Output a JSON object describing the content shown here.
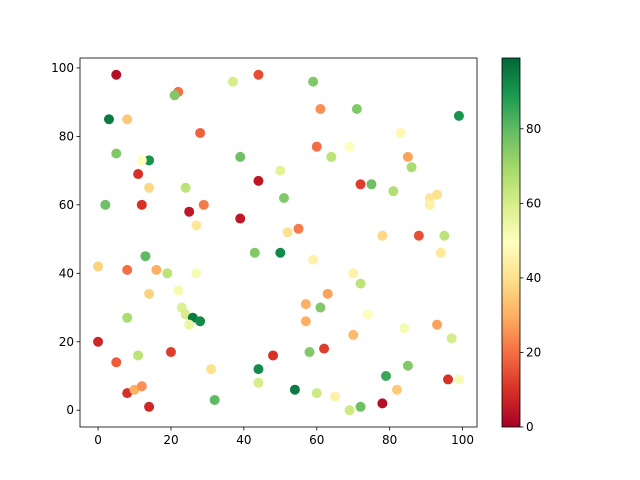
{
  "chart_data": {
    "type": "scatter",
    "colormap": "RdYlGn",
    "colormap_colors": [
      "#a50026",
      "#d73027",
      "#f46d43",
      "#fdae61",
      "#fee08b",
      "#ffffbf",
      "#d9ef8b",
      "#a6d96a",
      "#66bd63",
      "#1a9850",
      "#006837"
    ],
    "xlim": [
      -4.95,
      103.95
    ],
    "ylim": [
      -4.9,
      102.9
    ],
    "clim": [
      0,
      99
    ],
    "xticks": [
      0,
      20,
      40,
      60,
      80,
      100
    ],
    "yticks": [
      0,
      20,
      40,
      60,
      80,
      100
    ],
    "cticks": [
      0,
      20,
      40,
      60,
      80
    ],
    "series": [
      {
        "x": [
          5,
          22,
          21,
          37,
          44,
          59,
          3,
          8,
          99,
          61,
          71,
          5,
          14,
          12,
          28,
          39,
          60,
          64,
          69,
          83,
          85,
          86,
          11,
          14,
          24,
          44,
          50,
          51,
          72,
          75,
          81,
          91,
          93,
          91,
          2,
          12,
          25,
          29,
          39,
          27,
          52,
          55,
          78,
          88,
          95,
          13,
          43,
          50,
          59,
          94,
          0,
          8,
          16,
          19,
          27,
          70,
          72,
          22,
          14,
          63,
          57,
          61,
          23,
          24,
          26,
          28,
          25,
          57,
          74,
          84,
          93,
          8,
          70,
          97,
          0,
          20,
          48,
          58,
          62,
          5,
          11,
          44,
          85,
          31,
          79,
          96,
          99,
          44,
          8,
          10,
          12,
          54,
          60,
          65,
          82,
          14,
          32,
          69,
          72,
          78
        ],
        "y": [
          98,
          93,
          92,
          96,
          98,
          96,
          85,
          85,
          86,
          88,
          88,
          75,
          73,
          73,
          81,
          74,
          77,
          74,
          77,
          81,
          74,
          71,
          69,
          65,
          65,
          67,
          70,
          62,
          66,
          66,
          64,
          62,
          63,
          60,
          60,
          60,
          58,
          60,
          56,
          54,
          52,
          53,
          51,
          51,
          51,
          45,
          46,
          46,
          44,
          46,
          42,
          41,
          41,
          40,
          40,
          40,
          37,
          35,
          34,
          34,
          31,
          30,
          30,
          28,
          27,
          26,
          25,
          26,
          28,
          24,
          25,
          27,
          22,
          21,
          20,
          17,
          16,
          17,
          18,
          14,
          16,
          12,
          13,
          12,
          10,
          9,
          9,
          8,
          5,
          6,
          7,
          6,
          5,
          4,
          6,
          1,
          3,
          0,
          1,
          2
        ],
        "c": [
          3,
          20,
          75,
          60,
          15,
          75,
          95,
          35,
          90,
          25,
          75,
          75,
          90,
          50,
          18,
          78,
          20,
          65,
          50,
          47,
          28,
          68,
          10,
          38,
          65,
          5,
          57,
          75,
          12,
          78,
          67,
          42,
          40,
          45,
          78,
          10,
          5,
          22,
          5,
          42,
          40,
          22,
          38,
          15,
          65,
          80,
          75,
          92,
          45,
          42,
          37,
          20,
          30,
          65,
          52,
          45,
          65,
          52,
          37,
          28,
          30,
          75,
          58,
          60,
          95,
          92,
          55,
          30,
          50,
          52,
          28,
          68,
          32,
          60,
          8,
          12,
          10,
          75,
          12,
          17,
          65,
          92,
          75,
          40,
          85,
          10,
          52,
          60,
          10,
          30,
          25,
          95,
          62,
          45,
          35,
          8,
          80,
          62,
          78,
          3
        ]
      }
    ]
  }
}
